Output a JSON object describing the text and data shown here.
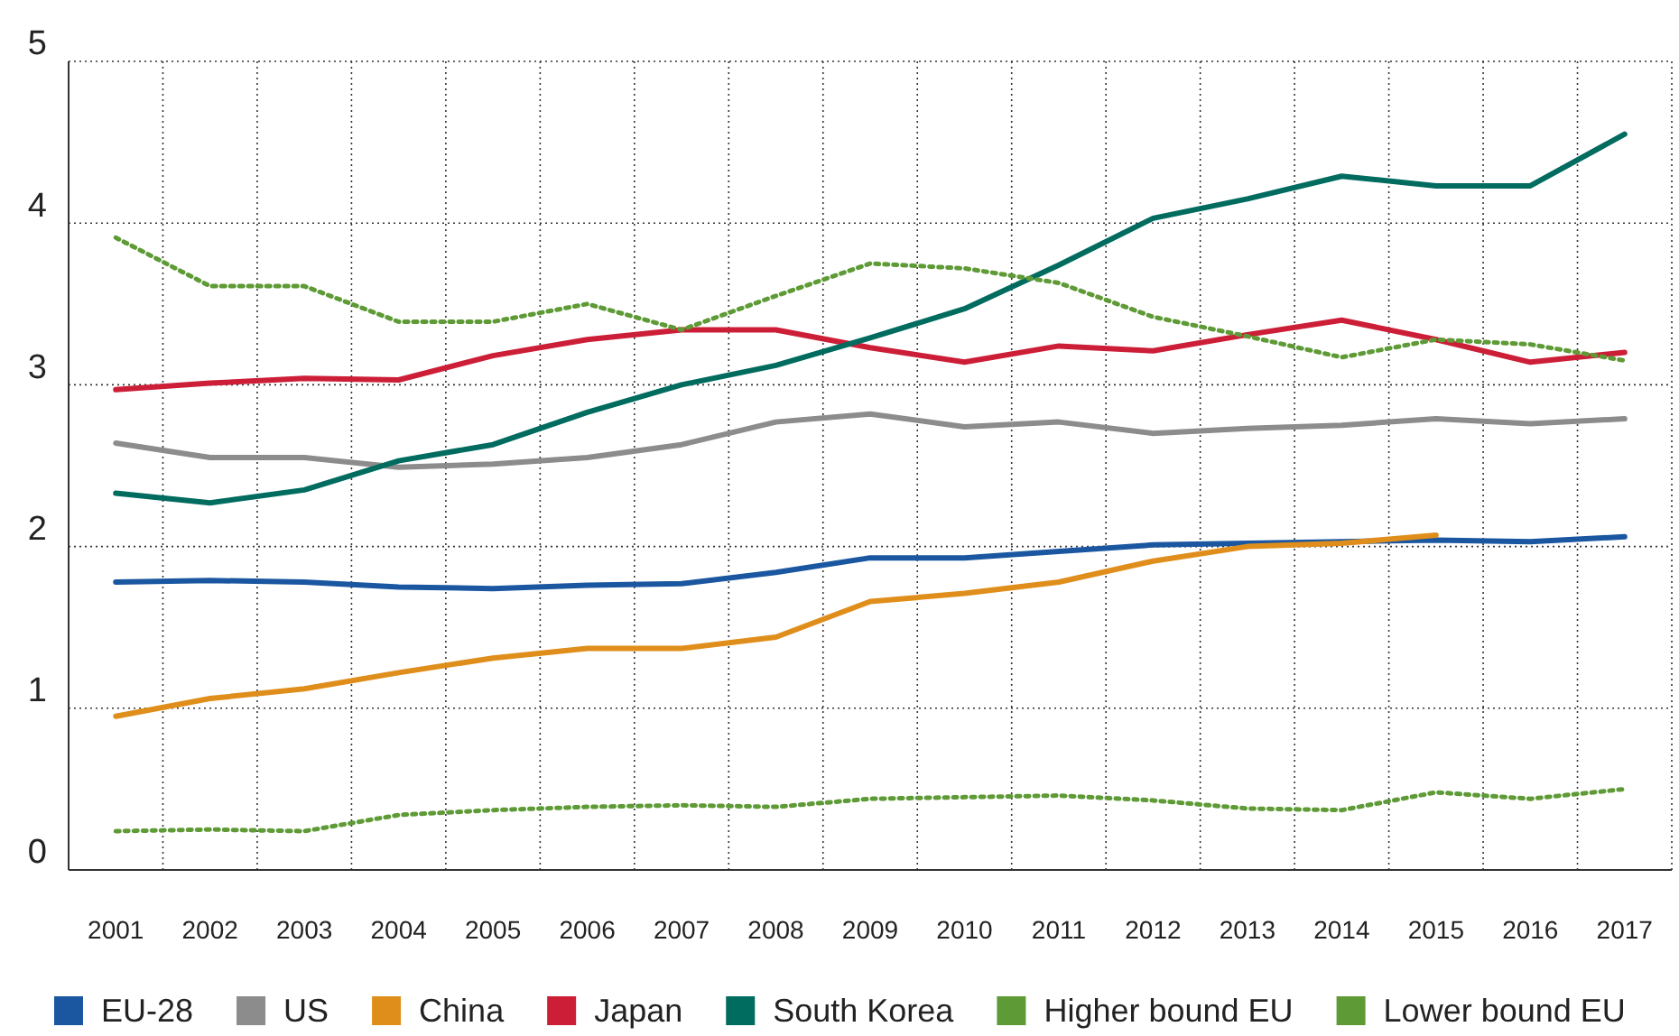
{
  "chart_data": {
    "type": "line",
    "categories": [
      "2001",
      "2002",
      "2003",
      "2004",
      "2005",
      "2006",
      "2007",
      "2008",
      "2009",
      "2010",
      "2011",
      "2012",
      "2013",
      "2014",
      "2015",
      "2016",
      "2017"
    ],
    "ylim": [
      0,
      5
    ],
    "yticks": [
      0,
      1,
      2,
      3,
      4,
      5
    ],
    "grid": true,
    "legend": "bottom",
    "marker": "none",
    "series": [
      {
        "name": "EU-28",
        "color": "#1a57a0",
        "line_style": "solid",
        "values": [
          1.78,
          1.79,
          1.78,
          1.75,
          1.74,
          1.76,
          1.77,
          1.84,
          1.93,
          1.93,
          1.97,
          2.01,
          2.02,
          2.03,
          2.04,
          2.03,
          2.06
        ]
      },
      {
        "name": "US",
        "color": "#8c8c8c",
        "line_style": "solid",
        "values": [
          2.64,
          2.55,
          2.55,
          2.49,
          2.51,
          2.55,
          2.63,
          2.77,
          2.82,
          2.74,
          2.77,
          2.7,
          2.73,
          2.75,
          2.79,
          2.76,
          2.79
        ]
      },
      {
        "name": "China",
        "color": "#e08e1b",
        "line_style": "solid",
        "values": [
          0.95,
          1.06,
          1.12,
          1.22,
          1.31,
          1.37,
          1.37,
          1.44,
          1.66,
          1.71,
          1.78,
          1.91,
          2.0,
          2.02,
          2.07,
          null,
          null
        ]
      },
      {
        "name": "Japan",
        "color": "#cc1e37",
        "line_style": "solid",
        "values": [
          2.97,
          3.01,
          3.04,
          3.03,
          3.18,
          3.28,
          3.34,
          3.34,
          3.23,
          3.14,
          3.24,
          3.21,
          3.31,
          3.4,
          3.28,
          3.14,
          3.2
        ]
      },
      {
        "name": "South Korea",
        "color": "#006b5f",
        "line_style": "solid",
        "values": [
          2.33,
          2.27,
          2.35,
          2.53,
          2.63,
          2.83,
          3.0,
          3.12,
          3.29,
          3.47,
          3.74,
          4.03,
          4.15,
          4.29,
          4.23,
          4.23,
          4.55
        ]
      },
      {
        "name": "Higher bound EU",
        "color": "#5e9a35",
        "line_style": "dotted",
        "values": [
          3.91,
          3.61,
          3.61,
          3.39,
          3.39,
          3.5,
          3.34,
          3.55,
          3.75,
          3.72,
          3.63,
          3.42,
          3.3,
          3.17,
          3.28,
          3.25,
          3.15
        ]
      },
      {
        "name": "Lower bound EU",
        "color": "#5e9a35",
        "line_style": "dotted",
        "values": [
          0.24,
          0.25,
          0.24,
          0.34,
          0.37,
          0.39,
          0.4,
          0.39,
          0.44,
          0.45,
          0.46,
          0.43,
          0.38,
          0.37,
          0.48,
          0.44,
          0.5
        ]
      }
    ]
  }
}
